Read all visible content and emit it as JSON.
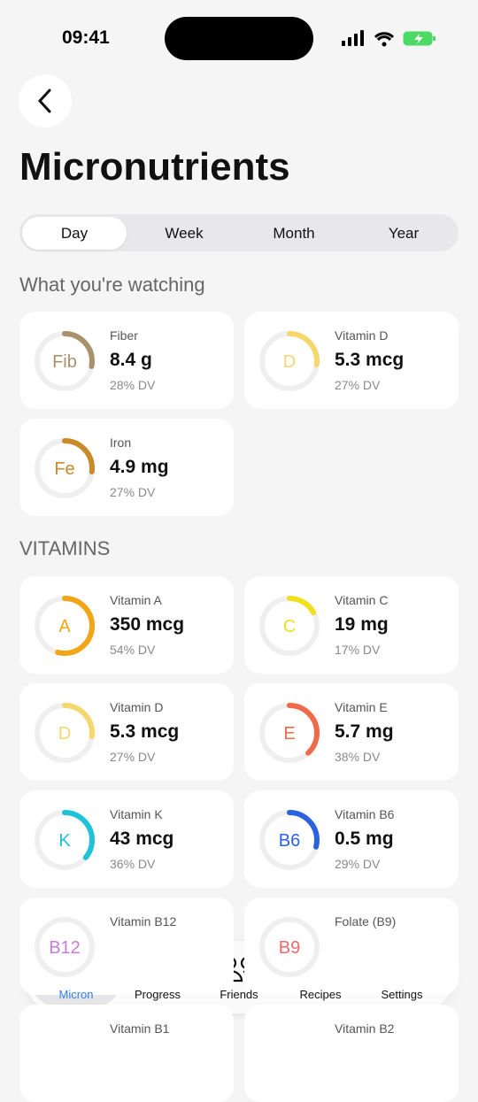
{
  "status_bar": {
    "time": "09:41"
  },
  "header": {
    "title": "Micronutrients"
  },
  "tabs": {
    "items": [
      "Day",
      "Week",
      "Month",
      "Year"
    ],
    "active": 0
  },
  "watching": {
    "title": "What you're watching",
    "items": [
      {
        "symbol": "Fib",
        "name": "Fiber",
        "amount": "8.4 g",
        "dv": "28% DV",
        "color": "#a8916c"
      },
      {
        "symbol": "D",
        "name": "Vitamin D",
        "amount": "5.3 mcg",
        "dv": "27% DV",
        "color": "#f5d76e"
      },
      {
        "symbol": "Fe",
        "name": "Iron",
        "amount": "4.9 mg",
        "dv": "27% DV",
        "color": "#c98a2a"
      }
    ]
  },
  "vitamins": {
    "title": "VITAMINS",
    "items": [
      {
        "symbol": "A",
        "name": "Vitamin A",
        "amount": "350 mcg",
        "dv": "54% DV",
        "color": "#f2a516"
      },
      {
        "symbol": "C",
        "name": "Vitamin C",
        "amount": "19 mg",
        "dv": "17% DV",
        "color": "#f0e020"
      },
      {
        "symbol": "D",
        "name": "Vitamin D",
        "amount": "5.3 mcg",
        "dv": "27% DV",
        "color": "#f5d76e"
      },
      {
        "symbol": "E",
        "name": "Vitamin E",
        "amount": "5.7 mg",
        "dv": "38% DV",
        "color": "#f06a4a"
      },
      {
        "symbol": "K",
        "name": "Vitamin K",
        "amount": "43 mcg",
        "dv": "36% DV",
        "color": "#1fc2d8"
      },
      {
        "symbol": "B6",
        "name": "Vitamin B6",
        "amount": "0.5 mg",
        "dv": "29% DV",
        "color": "#2a62e0"
      },
      {
        "symbol": "B12",
        "name": "Vitamin B12",
        "color": "#c77be0"
      },
      {
        "symbol": "B9",
        "name": "Folate (B9)",
        "color": "#f06a6a"
      },
      {
        "name": "Vitamin B1"
      },
      {
        "name": "Vitamin B2"
      }
    ]
  },
  "nav": {
    "items": [
      "Micron",
      "Progress",
      "Friends",
      "Recipes",
      "Settings"
    ],
    "active": 0
  }
}
